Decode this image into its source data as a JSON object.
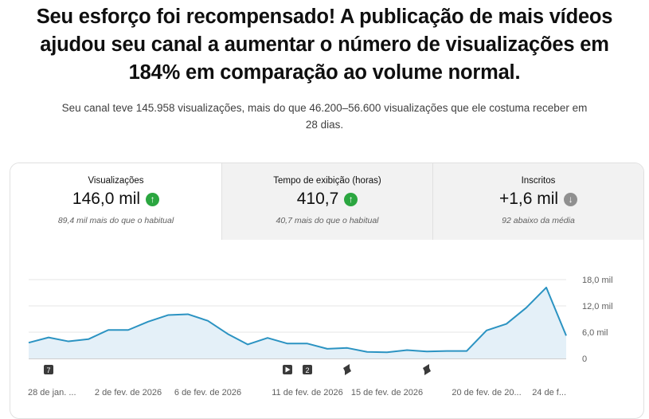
{
  "headline": {
    "line1": "Seu esforço foi recompensado! A publicação de mais vídeos",
    "line2": "ajudou seu canal a aumentar o número de visualizações em",
    "line3": "184% em comparação ao volume normal."
  },
  "subtext": {
    "line1": "Seu canal teve 145.958 visualizações, mais do que 46.200–56.600 visualizações que ele costuma receber em",
    "line2": "28 dias."
  },
  "tabs": [
    {
      "label": "Visualizações",
      "value": "146,0 mil",
      "trend": "up",
      "note": "89,4 mil mais do que o habitual"
    },
    {
      "label": "Tempo de exibição (horas)",
      "value": "410,7",
      "trend": "up",
      "note": "40,7 mais do que o habitual"
    },
    {
      "label": "Inscritos",
      "value": "+1,6 mil",
      "trend": "down",
      "note": "92 abaixo da média"
    }
  ],
  "colors": {
    "line": "#2b93c2",
    "area": "#e4f0f8",
    "up": "#2ba640",
    "down": "#909090"
  },
  "chart_data": {
    "type": "area",
    "title": "",
    "xlabel": "",
    "ylabel": "",
    "ylim": [
      0,
      18000
    ],
    "y_ticks": [
      "18,0 mil",
      "12,0 mil",
      "6,0 mil",
      "0"
    ],
    "y_tick_values": [
      18000,
      12000,
      6000,
      0
    ],
    "x_tick_labels": [
      "28 de jan. ...",
      "2 de fev. de 2026",
      "6 de fev. de 2026",
      "11 de fev. de 2026",
      "15 de fev. de 2026",
      "20 de fev. de 20...",
      "24 de f..."
    ],
    "x_tick_indices": [
      0,
      5,
      9,
      14,
      18,
      23,
      27
    ],
    "series": [
      {
        "values": [
          3600,
          4800,
          3900,
          4400,
          6500,
          6500,
          8400,
          9900,
          10100,
          8600,
          5600,
          3200,
          4700,
          3400,
          3400,
          2200,
          2400,
          1500,
          1400,
          1900,
          1600,
          1700,
          1700,
          6400,
          7900,
          11600,
          16200,
          5200
        ]
      }
    ],
    "markers": [
      {
        "index": 1,
        "kind": "count",
        "label": "7"
      },
      {
        "index": 13,
        "kind": "video-icon",
        "label": ""
      },
      {
        "index": 14,
        "kind": "count",
        "label": "2"
      },
      {
        "index": 16,
        "kind": "shorts-icon",
        "label": ""
      },
      {
        "index": 20,
        "kind": "shorts-icon",
        "label": ""
      }
    ]
  }
}
